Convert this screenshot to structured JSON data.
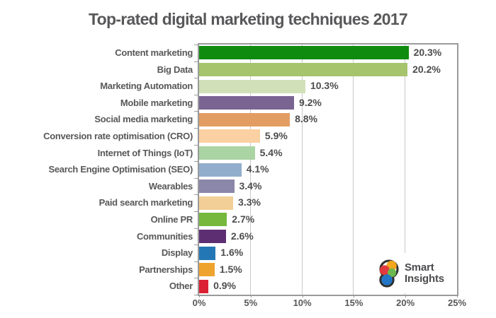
{
  "title": "Top-rated digital marketing techniques 2017",
  "chart_data": {
    "type": "bar",
    "orientation": "horizontal",
    "title": "Top-rated digital marketing techniques 2017",
    "categories": [
      "Content marketing",
      "Big Data",
      "Marketing Automation",
      "Mobile marketing",
      "Social media marketing",
      "Conversion rate optimisation (CRO)",
      "Internet of Things (IoT)",
      "Search Engine Optimisation (SEO)",
      "Wearables",
      "Paid search marketing",
      "Online PR",
      "Communities",
      "Display",
      "Partnerships",
      "Other"
    ],
    "values": [
      20.3,
      20.2,
      10.3,
      9.2,
      8.8,
      5.9,
      5.4,
      4.1,
      3.4,
      3.3,
      2.7,
      2.6,
      1.6,
      1.5,
      0.9
    ],
    "value_labels": [
      "20.3%",
      "20.2%",
      "10.3%",
      "9.2%",
      "8.8%",
      "5.9%",
      "5.4%",
      "4.1%",
      "3.4%",
      "3.3%",
      "2.7%",
      "2.6%",
      "1.6%",
      "1.5%",
      "0.9%"
    ],
    "bar_colors": [
      "#0f8b0f",
      "#a6c46c",
      "#d2e0ba",
      "#7a6492",
      "#e29d63",
      "#fbd0a2",
      "#aad4a3",
      "#92aecd",
      "#8b87a9",
      "#f2cf96",
      "#76b83e",
      "#5e2e73",
      "#2377b4",
      "#efa32f",
      "#da2032"
    ],
    "xlabel": "",
    "ylabel": "",
    "xlim": [
      0,
      25
    ],
    "x_ticks_pct": [
      0,
      5,
      10,
      15,
      20,
      25
    ],
    "x_tick_labels": [
      "0%",
      "5%",
      "10%",
      "15%",
      "20%",
      "25%"
    ],
    "grid": true,
    "legend": false,
    "data_labels": true
  },
  "colors": {
    "background": "#ffffff",
    "title_text": "#58585a",
    "category_text": "#58585a",
    "value_text": "#4d4d4f",
    "axis_text": "#58585a",
    "gridline": "#c9c9c9",
    "frame": "#999a9b"
  },
  "logo": {
    "line1": "Smart",
    "line2": "Insights",
    "mark_outline": "#303030",
    "dot_orange": "#f2a71e",
    "dot_red": "#e03a3f",
    "dot_green": "#6cb84e",
    "dot_blue": "#2176c7"
  }
}
